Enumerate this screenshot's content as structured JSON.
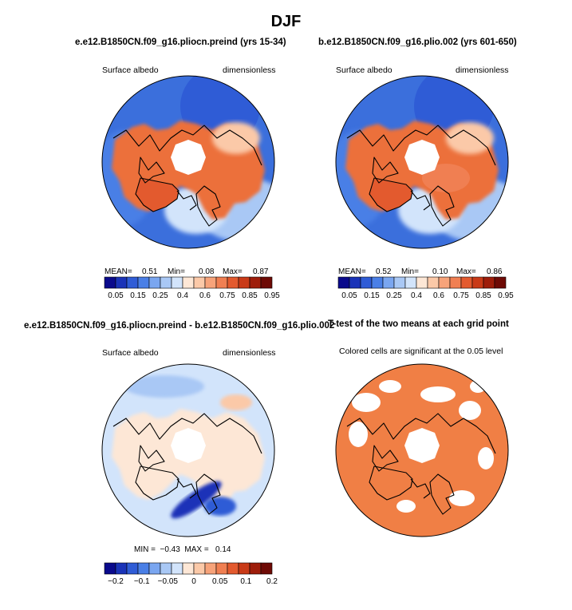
{
  "figure": {
    "title": "DJF",
    "colors": {
      "albedo_scale": [
        "#0a0a8c",
        "#1a33b8",
        "#2f5cd6",
        "#4a7fe6",
        "#7aa6f0",
        "#a9c8f5",
        "#d2e4fb",
        "#fde7d6",
        "#fbc9a8",
        "#f7a37a",
        "#f07f52",
        "#e35a2e",
        "#c93a17",
        "#9e1d0a",
        "#6e0a05"
      ],
      "diff_scale": [
        "#0a0a8c",
        "#1a33b8",
        "#2f5cd6",
        "#4a7fe6",
        "#7aa6f0",
        "#a9c8f5",
        "#d2e4fb",
        "#fde7d6",
        "#fbc9a8",
        "#f7a37a",
        "#f07f52",
        "#e35a2e",
        "#c93a17",
        "#9e1d0a",
        "#6e0a05"
      ],
      "significant": "#f07f45",
      "land_orange": "#ec6f3a",
      "ocean_blue": "#3b6fdc"
    }
  },
  "panels": [
    {
      "title": "e.e12.B1850CN.f09_g16.pliocn.preind (yrs 15-34)",
      "left_label": "Surface albedo",
      "right_label": "dimensionless",
      "stats": {
        "mean_label": "MEAN=",
        "mean": "0.51",
        "min_label": "Min=",
        "min": "0.08",
        "max_label": "Max=",
        "max": "0.87"
      },
      "colorbar_ticks": [
        "0.05",
        "0.15",
        "0.25",
        "0.4",
        "0.6",
        "0.75",
        "0.85",
        "0.95"
      ]
    },
    {
      "title": "b.e12.B1850CN.f09_g16.plio.002 (yrs 601-650)",
      "left_label": "Surface albedo",
      "right_label": "dimensionless",
      "stats": {
        "mean_label": "MEAN=",
        "mean": "0.52",
        "min_label": "Min=",
        "min": "0.10",
        "max_label": "Max=",
        "max": "0.86"
      },
      "colorbar_ticks": [
        "0.05",
        "0.15",
        "0.25",
        "0.4",
        "0.6",
        "0.75",
        "0.85",
        "0.95"
      ]
    },
    {
      "title": "e.e12.B1850CN.f09_g16.pliocn.preind - b.e12.B1850CN.f09_g16.plio.002",
      "left_label": "Surface albedo",
      "right_label": "dimensionless",
      "stats_text": "MIN =  −0.43  MAX =   0.14",
      "colorbar_ticks": [
        "−0.2",
        "−0.1",
        "−0.05",
        "0",
        "0.05",
        "0.1",
        "0.2"
      ]
    },
    {
      "title": "T-test of the two means at each grid point",
      "left_label": "Colored cells are significant at the 0.05 level"
    }
  ],
  "chart_data": [
    {
      "type": "heatmap",
      "projection": "north-polar-stereographic",
      "title": "e.e12.B1850CN.f09_g16.pliocn.preind (yrs 15-34)",
      "variable": "Surface albedo",
      "units": "dimensionless",
      "mean": 0.51,
      "min": 0.08,
      "max": 0.87,
      "contour_levels": [
        0.05,
        0.1,
        0.15,
        0.2,
        0.25,
        0.3,
        0.4,
        0.5,
        0.6,
        0.7,
        0.75,
        0.8,
        0.85,
        0.9,
        0.95
      ]
    },
    {
      "type": "heatmap",
      "projection": "north-polar-stereographic",
      "title": "b.e12.B1850CN.f09_g16.plio.002 (yrs 601-650)",
      "variable": "Surface albedo",
      "units": "dimensionless",
      "mean": 0.52,
      "min": 0.1,
      "max": 0.86,
      "contour_levels": [
        0.05,
        0.1,
        0.15,
        0.2,
        0.25,
        0.3,
        0.4,
        0.5,
        0.6,
        0.7,
        0.75,
        0.8,
        0.85,
        0.9,
        0.95
      ]
    },
    {
      "type": "heatmap",
      "projection": "north-polar-stereographic",
      "title": "e.e12.B1850CN.f09_g16.pliocn.preind - b.e12.B1850CN.f09_g16.plio.002",
      "variable": "Surface albedo",
      "units": "dimensionless",
      "min": -0.43,
      "max": 0.14,
      "contour_levels": [
        -0.3,
        -0.2,
        -0.15,
        -0.1,
        -0.07,
        -0.05,
        -0.02,
        0,
        0.02,
        0.05,
        0.07,
        0.1,
        0.15,
        0.2,
        0.3
      ]
    },
    {
      "type": "heatmap",
      "projection": "north-polar-stereographic",
      "title": "T-test of the two means at each grid point",
      "note": "Colored cells are significant at the 0.05 level",
      "significance_level": 0.05
    }
  ]
}
